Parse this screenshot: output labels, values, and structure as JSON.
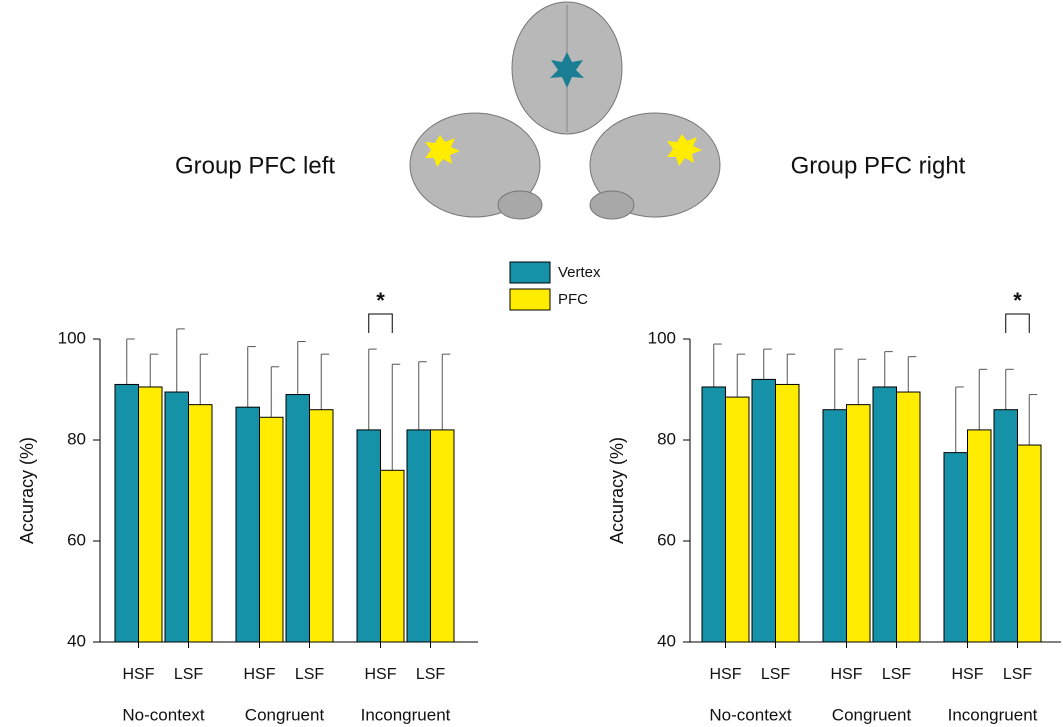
{
  "chart_data": [
    {
      "type": "bar",
      "title": "Group PFC left",
      "ylabel": "Accuracy (%)",
      "categories": [
        "HSF",
        "LSF",
        "HSF",
        "LSF",
        "HSF",
        "LSF"
      ],
      "groups": [
        "No-context",
        "Congruent",
        "Incongruent"
      ],
      "series": [
        {
          "name": "Vertex",
          "color": "#1592a8",
          "values": [
            91,
            89.5,
            86.5,
            89,
            82,
            82
          ],
          "errors": [
            9,
            12.5,
            12,
            10.5,
            16,
            13.5
          ]
        },
        {
          "name": "PFC",
          "color": "#ffec00",
          "values": [
            90.5,
            87,
            84.5,
            86,
            74,
            82
          ],
          "errors": [
            6.5,
            10,
            10,
            11,
            21,
            15
          ]
        }
      ],
      "ylim": [
        40,
        100
      ],
      "yticks": [
        40,
        60,
        80,
        100
      ],
      "annotations": [
        {
          "text": "*",
          "category": 4
        }
      ]
    },
    {
      "type": "bar",
      "title": "Group PFC right",
      "ylabel": "Accuracy (%)",
      "categories": [
        "HSF",
        "LSF",
        "HSF",
        "LSF",
        "HSF",
        "LSF"
      ],
      "groups": [
        "No-context",
        "Congruent",
        "Incongruent"
      ],
      "series": [
        {
          "name": "Vertex",
          "color": "#1592a8",
          "values": [
            90.5,
            92,
            86,
            90.5,
            77.5,
            86
          ],
          "errors": [
            8.5,
            6,
            12,
            7,
            13,
            8
          ]
        },
        {
          "name": "PFC",
          "color": "#ffec00",
          "values": [
            88.5,
            91,
            87,
            89.5,
            82,
            79
          ],
          "errors": [
            8.5,
            6,
            9,
            7,
            12,
            10
          ]
        }
      ],
      "ylim": [
        40,
        100
      ],
      "yticks": [
        40,
        60,
        80,
        100
      ],
      "annotations": [
        {
          "text": "*",
          "category": 5
        }
      ]
    }
  ]
}
